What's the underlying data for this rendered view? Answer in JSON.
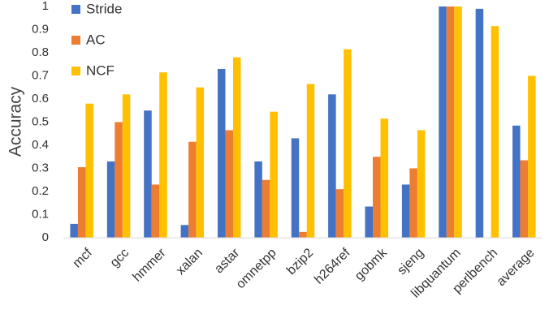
{
  "chart_data": {
    "type": "bar",
    "title": "",
    "xlabel": "",
    "ylabel": "Accuracy",
    "ylim": [
      0,
      1
    ],
    "yticks": [
      "0",
      "0.1",
      "0.2",
      "0.3",
      "0.4",
      "0.5",
      "0.6",
      "0.7",
      "0.8",
      "0.9",
      "1"
    ],
    "grid": false,
    "legend_position": "top-left",
    "categories": [
      "mcf",
      "gcc",
      "hmmer",
      "xalan",
      "astar",
      "omnetpp",
      "bzip2",
      "h264ref",
      "gobmk",
      "sjeng",
      "libquantum",
      "perlbench",
      "average"
    ],
    "series": [
      {
        "name": "Stride",
        "color": "#4472C4",
        "values": [
          0.06,
          0.33,
          0.55,
          0.055,
          0.73,
          0.33,
          0.43,
          0.62,
          0.135,
          0.23,
          1.0,
          0.99,
          0.485
        ]
      },
      {
        "name": "AC",
        "color": "#ED7D31",
        "values": [
          0.305,
          0.5,
          0.23,
          0.415,
          0.465,
          0.25,
          0.025,
          0.21,
          0.35,
          0.3,
          1.0,
          0.0,
          0.335
        ]
      },
      {
        "name": "NCF",
        "color": "#FFC000",
        "values": [
          0.58,
          0.62,
          0.715,
          0.65,
          0.78,
          0.545,
          0.665,
          0.815,
          0.515,
          0.465,
          1.0,
          0.915,
          0.7
        ]
      }
    ]
  }
}
